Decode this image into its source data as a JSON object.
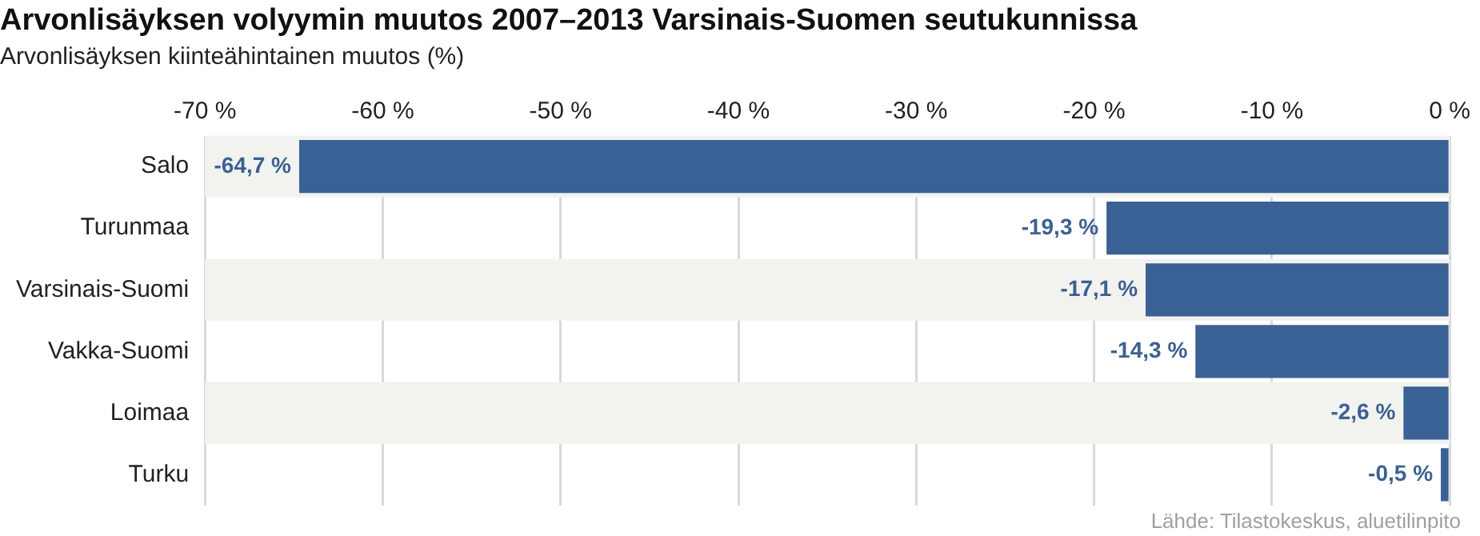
{
  "chart_data": {
    "type": "bar",
    "orientation": "horizontal",
    "title": "Arvonlisäyksen volyymin muutos 2007–2013 Varsinais-Suomen seutukunnissa",
    "subtitle": "Arvonlisäyksen kiinteähintainen muutos (%)",
    "categories": [
      "Salo",
      "Turunmaa",
      "Varsinais-Suomi",
      "Vakka-Suomi",
      "Loimaa",
      "Turku"
    ],
    "values": [
      -64.7,
      -19.3,
      -17.1,
      -14.3,
      -2.6,
      -0.5
    ],
    "value_labels": [
      "-64,7 %",
      "-19,3 %",
      "-17,1 %",
      "-14,3 %",
      "-2,6 %",
      "-0,5 %"
    ],
    "color": "#3a6195",
    "xlim": [
      -70,
      0
    ],
    "xticks": [
      {
        "value": -70,
        "label": "-70 %"
      },
      {
        "value": -60,
        "label": "-60 %"
      },
      {
        "value": -50,
        "label": "-50 %"
      },
      {
        "value": -40,
        "label": "-40 %"
      },
      {
        "value": -30,
        "label": "-30 %"
      },
      {
        "value": -20,
        "label": "-20 %"
      },
      {
        "value": -10,
        "label": "-10 %"
      },
      {
        "value": 0,
        "label": "0 %"
      }
    ],
    "grid": "x",
    "legend": false,
    "annotations": [
      "Lähde: Tilastokeskus, aluetilinpito"
    ]
  }
}
